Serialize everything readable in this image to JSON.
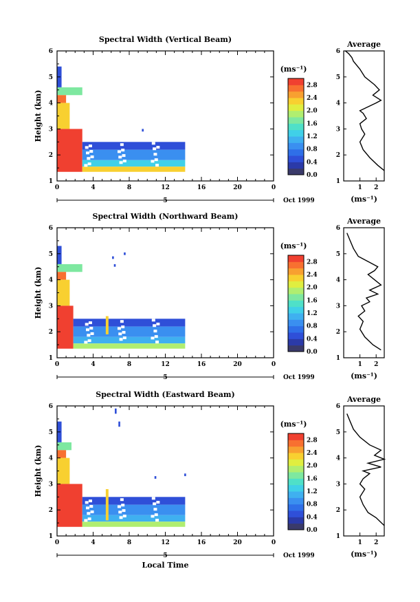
{
  "chart_data": [
    {
      "type": "heatmap",
      "title": "Spectral Width (Vertical Beam)",
      "xlabel": "",
      "ylabel": "Height (km)",
      "x_ticks": [
        "0",
        "4",
        "8",
        "12",
        "16",
        "20",
        "0"
      ],
      "y_ticks": [
        "1",
        "2",
        "3",
        "4",
        "5",
        "6"
      ],
      "xlim": [
        0,
        24
      ],
      "ylim": [
        1,
        6
      ],
      "day_label": "5",
      "date_label": "Oct 1999",
      "colorbar": {
        "unit": "(ms⁻¹)",
        "ticks": [
          "0.0",
          "0.4",
          "0.8",
          "1.2",
          "1.6",
          "2.0",
          "2.4",
          "2.8"
        ],
        "range": [
          0,
          3.0
        ]
      },
      "data_extent": {
        "x_end_hours": 14.2,
        "lower_height_km": 1.35
      },
      "cells": [
        {
          "x0": 0,
          "x1": 0.5,
          "y0": 4.6,
          "y1": 5.4,
          "v": 0.6
        },
        {
          "x0": 0,
          "x1": 2.8,
          "y0": 4.3,
          "y1": 4.6,
          "v": 1.6
        },
        {
          "x0": 0,
          "x1": 1.0,
          "y0": 4.0,
          "y1": 4.3,
          "v": 2.6
        },
        {
          "x0": 0,
          "x1": 1.4,
          "y0": 3.0,
          "y1": 4.0,
          "v": 2.2
        },
        {
          "x0": 0,
          "x1": 2.8,
          "y0": 1.35,
          "y1": 3.0,
          "v": 2.9
        },
        {
          "x0": 2.8,
          "x1": 14.2,
          "y0": 2.2,
          "y1": 2.5,
          "v": 0.6
        },
        {
          "x0": 2.8,
          "x1": 14.2,
          "y0": 1.8,
          "y1": 2.2,
          "v": 0.8
        },
        {
          "x0": 2.8,
          "x1": 14.2,
          "y0": 1.55,
          "y1": 1.8,
          "v": 1.4
        },
        {
          "x0": 2.8,
          "x1": 14.2,
          "y0": 1.35,
          "y1": 1.55,
          "v": 2.2
        },
        {
          "x0": 9.4,
          "x1": 9.6,
          "y0": 2.9,
          "y1": 3.0,
          "v": 0.4
        }
      ],
      "avg_panel": {
        "title": "Average",
        "xlabel": "(ms⁻¹)",
        "x_ticks": [
          "1",
          "2"
        ],
        "xlim": [
          0,
          2.5
        ],
        "y_ticks": [
          "1",
          "2",
          "3",
          "4",
          "5",
          "6"
        ],
        "profile_x": [
          2.5,
          2.1,
          1.6,
          1.2,
          1.0,
          1.3,
          1.1,
          1.0,
          1.4,
          1.2,
          1.0,
          1.5,
          2.0,
          2.3,
          1.8,
          2.2,
          1.9,
          1.3,
          1.0,
          0.6,
          0.5,
          0.3,
          0.1
        ],
        "profile_y": [
          1.4,
          1.6,
          1.9,
          2.2,
          2.5,
          2.8,
          3.0,
          3.2,
          3.4,
          3.6,
          3.7,
          3.85,
          4.0,
          4.1,
          4.3,
          4.5,
          4.7,
          5.0,
          5.3,
          5.6,
          5.75,
          5.9,
          6.0
        ]
      }
    },
    {
      "type": "heatmap",
      "title": "Spectral Width (Northward Beam)",
      "xlabel": "",
      "ylabel": "Height (km)",
      "x_ticks": [
        "0",
        "4",
        "8",
        "12",
        "16",
        "20",
        "0"
      ],
      "y_ticks": [
        "1",
        "2",
        "3",
        "4",
        "5",
        "6"
      ],
      "xlim": [
        0,
        24
      ],
      "ylim": [
        1,
        6
      ],
      "day_label": "5",
      "date_label": "Oct 1999",
      "colorbar": {
        "unit": "(ms⁻¹)",
        "ticks": [
          "0.0",
          "0.4",
          "0.8",
          "1.2",
          "1.6",
          "2.0",
          "2.4",
          "2.8"
        ],
        "range": [
          0,
          3.0
        ]
      },
      "data_extent": {
        "x_end_hours": 14.2,
        "lower_height_km": 1.35
      },
      "cells": [
        {
          "x0": 0,
          "x1": 0.5,
          "y0": 4.6,
          "y1": 5.3,
          "v": 0.6
        },
        {
          "x0": 0,
          "x1": 2.8,
          "y0": 4.3,
          "y1": 4.6,
          "v": 1.6
        },
        {
          "x0": 0,
          "x1": 1.0,
          "y0": 4.0,
          "y1": 4.3,
          "v": 2.6
        },
        {
          "x0": 0,
          "x1": 1.4,
          "y0": 3.0,
          "y1": 4.0,
          "v": 2.2
        },
        {
          "x0": 0,
          "x1": 1.8,
          "y0": 1.35,
          "y1": 3.0,
          "v": 2.9
        },
        {
          "x0": 1.8,
          "x1": 14.2,
          "y0": 2.2,
          "y1": 2.5,
          "v": 0.5
        },
        {
          "x0": 1.8,
          "x1": 14.2,
          "y0": 1.8,
          "y1": 2.2,
          "v": 0.8
        },
        {
          "x0": 1.8,
          "x1": 14.2,
          "y0": 1.55,
          "y1": 1.8,
          "v": 1.2
        },
        {
          "x0": 1.8,
          "x1": 14.2,
          "y0": 1.35,
          "y1": 1.55,
          "v": 1.8
        },
        {
          "x0": 5.4,
          "x1": 5.7,
          "y0": 1.9,
          "y1": 2.6,
          "v": 2.4
        },
        {
          "x0": 6.1,
          "x1": 6.3,
          "y0": 4.8,
          "y1": 4.9,
          "v": 0.4
        },
        {
          "x0": 6.3,
          "x1": 6.5,
          "y0": 4.5,
          "y1": 4.6,
          "v": 0.4
        },
        {
          "x0": 7.4,
          "x1": 7.6,
          "y0": 4.95,
          "y1": 5.05,
          "v": 0.4
        }
      ],
      "avg_panel": {
        "title": "Average",
        "xlabel": "(ms⁻¹)",
        "x_ticks": [
          "1",
          "2"
        ],
        "xlim": [
          0,
          2.5
        ],
        "y_ticks": [
          "1",
          "2",
          "3",
          "4",
          "5",
          "6"
        ],
        "profile_x": [
          2.3,
          1.8,
          1.3,
          1.0,
          1.2,
          0.9,
          1.3,
          1.1,
          1.6,
          1.4,
          2.1,
          1.6,
          2.3,
          1.9,
          1.5,
          1.9,
          2.1,
          1.5,
          0.9,
          0.6,
          0.4,
          0.2
        ],
        "profile_y": [
          1.3,
          1.5,
          1.8,
          2.1,
          2.4,
          2.6,
          2.8,
          3.0,
          3.15,
          3.3,
          3.45,
          3.6,
          3.8,
          4.0,
          4.2,
          4.35,
          4.5,
          4.7,
          4.9,
          5.2,
          5.5,
          5.8
        ]
      }
    },
    {
      "type": "heatmap",
      "title": "Spectral Width (Eastward Beam)",
      "xlabel": "Local Time",
      "ylabel": "Height (km)",
      "x_ticks": [
        "0",
        "4",
        "8",
        "12",
        "16",
        "20",
        "0"
      ],
      "y_ticks": [
        "1",
        "2",
        "3",
        "4",
        "5",
        "6"
      ],
      "xlim": [
        0,
        24
      ],
      "ylim": [
        1,
        6
      ],
      "day_label": "5",
      "date_label": "Oct 1999",
      "colorbar": {
        "unit": "(ms⁻¹)",
        "ticks": [
          "0.0",
          "0.4",
          "0.8",
          "1.2",
          "1.6",
          "2.0",
          "2.4",
          "2.8"
        ],
        "range": [
          0,
          3.0
        ]
      },
      "data_extent": {
        "x_end_hours": 14.2,
        "lower_height_km": 1.35
      },
      "cells": [
        {
          "x0": 0,
          "x1": 0.5,
          "y0": 4.6,
          "y1": 5.4,
          "v": 0.6
        },
        {
          "x0": 0,
          "x1": 1.6,
          "y0": 4.3,
          "y1": 4.6,
          "v": 1.6
        },
        {
          "x0": 0,
          "x1": 1.0,
          "y0": 4.0,
          "y1": 4.3,
          "v": 2.6
        },
        {
          "x0": 0,
          "x1": 1.4,
          "y0": 3.0,
          "y1": 4.0,
          "v": 2.2
        },
        {
          "x0": 0,
          "x1": 2.8,
          "y0": 1.35,
          "y1": 3.0,
          "v": 2.9
        },
        {
          "x0": 2.8,
          "x1": 14.2,
          "y0": 2.2,
          "y1": 2.5,
          "v": 0.5
        },
        {
          "x0": 2.8,
          "x1": 14.2,
          "y0": 1.8,
          "y1": 2.2,
          "v": 0.8
        },
        {
          "x0": 2.8,
          "x1": 14.2,
          "y0": 1.55,
          "y1": 1.8,
          "v": 1.2
        },
        {
          "x0": 2.8,
          "x1": 14.2,
          "y0": 1.35,
          "y1": 1.55,
          "v": 1.8
        },
        {
          "x0": 5.4,
          "x1": 5.7,
          "y0": 1.6,
          "y1": 2.8,
          "v": 2.4
        },
        {
          "x0": 6.4,
          "x1": 6.6,
          "y0": 5.7,
          "y1": 5.9,
          "v": 0.4
        },
        {
          "x0": 6.8,
          "x1": 7.0,
          "y0": 5.2,
          "y1": 5.4,
          "v": 0.4
        },
        {
          "x0": 10.8,
          "x1": 11.0,
          "y0": 3.2,
          "y1": 3.3,
          "v": 0.4
        },
        {
          "x0": 14.1,
          "x1": 14.3,
          "y0": 3.3,
          "y1": 3.4,
          "v": 0.4
        }
      ],
      "avg_panel": {
        "title": "Average",
        "xlabel": "(ms⁻¹)",
        "x_ticks": [
          "1",
          "2"
        ],
        "xlim": [
          0,
          2.5
        ],
        "y_ticks": [
          "1",
          "2",
          "3",
          "4",
          "5",
          "6"
        ],
        "profile_x": [
          2.5,
          2.0,
          1.5,
          1.2,
          1.0,
          1.3,
          1.0,
          1.2,
          1.6,
          1.2,
          2.3,
          1.5,
          2.5,
          1.9,
          2.3,
          1.6,
          1.0,
          0.6,
          0.4,
          0.2
        ],
        "profile_y": [
          1.4,
          1.7,
          1.9,
          2.2,
          2.5,
          2.8,
          3.0,
          3.2,
          3.4,
          3.5,
          3.65,
          3.8,
          3.95,
          4.1,
          4.3,
          4.5,
          4.8,
          5.1,
          5.4,
          5.7
        ]
      }
    }
  ]
}
